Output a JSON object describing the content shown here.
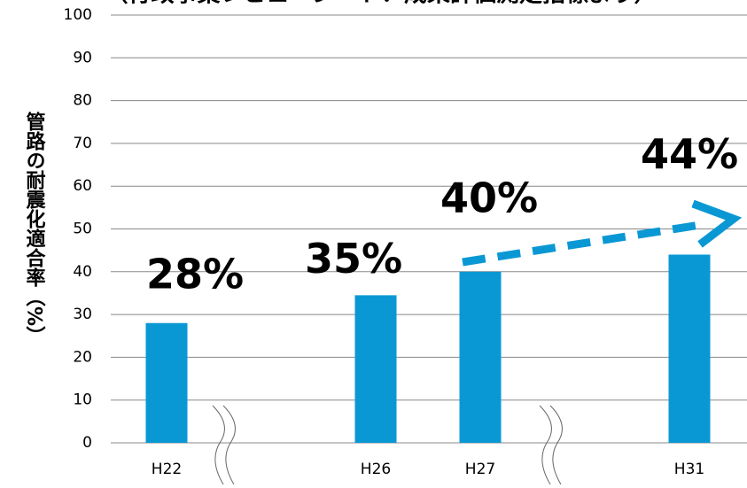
{
  "chart_data": {
    "type": "bar",
    "title": "（行政事業レビューシート：成果評価測定指標より）",
    "y_label": "管路の耐震化適合率（%）",
    "categories": [
      "H22",
      null,
      "H26",
      "H27",
      null,
      "H31"
    ],
    "values": [
      28,
      null,
      34.5,
      40,
      null,
      44
    ],
    "value_labels": [
      "28%",
      null,
      "35%",
      "40%",
      null,
      "44%"
    ],
    "color": "#0a98d4",
    "ylim": [
      0,
      100
    ],
    "yticks": [
      0,
      10,
      20,
      30,
      40,
      50,
      60,
      70,
      80,
      90,
      100
    ],
    "grid": true
  }
}
